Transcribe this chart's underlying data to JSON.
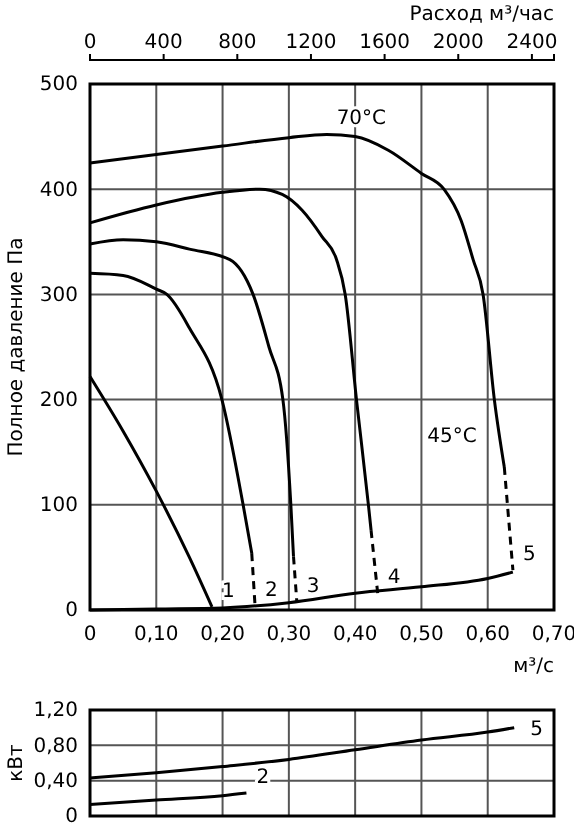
{
  "chart_data": [
    {
      "type": "line",
      "x2label": "Расход м³/час",
      "ylabel": "Полное давление Па",
      "xlabel": "м³/с",
      "xlim": [
        0,
        0.7
      ],
      "xticks": [
        0,
        {
          "value": 0.1,
          "label": "0,10"
        },
        {
          "value": 0.2,
          "label": "0,20"
        },
        {
          "value": 0.3,
          "label": "0,30"
        },
        {
          "value": 0.4,
          "label": "0,40"
        },
        {
          "value": 0.5,
          "label": "0,50"
        },
        {
          "value": 0.6,
          "label": "0,60"
        },
        {
          "value": 0.7,
          "label": "0,70"
        }
      ],
      "x2lim": [
        0,
        2520
      ],
      "x2ticks": [
        0,
        400,
        800,
        1200,
        1600,
        2000,
        2400
      ],
      "ylim": [
        0,
        500
      ],
      "yticks": [
        0,
        100,
        200,
        300,
        400,
        500
      ],
      "grid": true,
      "series": [
        {
          "color": "#000000",
          "x": [
            0,
            0.05,
            0.1,
            0.15,
            0.184
          ],
          "values": [
            222,
            170,
            113,
            50,
            3
          ]
        },
        {
          "color": "#000000",
          "x": [
            0,
            0.05,
            0.1,
            0.116,
            0.15,
            0.199,
            0.231,
            0.244
          ],
          "values": [
            320,
            318,
            305,
            300,
            268,
            200,
            100,
            54
          ]
        },
        {
          "color": "#000000",
          "line_style": "dashed",
          "x": [
            0.244,
            0.249
          ],
          "values": [
            54,
            4
          ]
        },
        {
          "color": "#000000",
          "x": [
            0,
            0.05,
            0.1,
            0.15,
            0.211,
            0.246,
            0.27,
            0.291,
            0.303,
            0.307
          ],
          "values": [
            348,
            352,
            350,
            343,
            333,
            300,
            250,
            200,
            100,
            51
          ]
        },
        {
          "color": "#000000",
          "line_style": "dashed",
          "x": [
            0.307,
            0.312
          ],
          "values": [
            51,
            8
          ]
        },
        {
          "color": "#000000",
          "x": [
            0,
            0.1,
            0.2,
            0.256,
            0.29,
            0.32,
            0.35,
            0.372,
            0.385,
            0.402,
            0.42,
            0.424
          ],
          "values": [
            368,
            385,
            397,
            400,
            395,
            380,
            355,
            333,
            300,
            200,
            100,
            76
          ]
        },
        {
          "color": "#000000",
          "line_style": "dashed",
          "x": [
            0.424,
            0.434
          ],
          "values": [
            76,
            16
          ]
        },
        {
          "color": "#000000",
          "x": [
            0,
            0.1,
            0.2,
            0.3,
            0.357,
            0.4,
            0.45,
            0.5,
            0.534,
            0.56,
            0.578,
            0.593,
            0.61,
            0.625
          ],
          "values": [
            425,
            433,
            441,
            449,
            452,
            450,
            437,
            415,
            400,
            370,
            333,
            300,
            200,
            136
          ]
        },
        {
          "color": "#000000",
          "line_style": "dashed",
          "x": [
            0.625,
            0.638
          ],
          "values": [
            136,
            38
          ]
        },
        {
          "color": "#000000",
          "x": [
            0,
            0.1,
            0.2,
            0.3,
            0.4,
            0.5,
            0.6,
            0.638
          ],
          "values": [
            0,
            1,
            2,
            7,
            16,
            22,
            30,
            36
          ]
        }
      ],
      "annotations": [
        {
          "text": "70°C",
          "x": 0.357,
          "y": 452
        },
        "45°C",
        {
          "text": "1",
          "x": 0.184,
          "y": 3
        },
        {
          "text": "2",
          "x": 0.249,
          "y": 4
        },
        {
          "text": "3",
          "x": 0.312,
          "y": 8
        },
        {
          "text": "4",
          "x": 0.434,
          "y": 16
        },
        {
          "text": "5",
          "x": 0.638,
          "y": 38
        }
      ]
    },
    {
      "type": "line",
      "ylabel": "кВт",
      "xlim": [
        0,
        0.7
      ],
      "xticks": [
        0,
        0.1,
        0.2,
        0.3,
        0.4,
        0.5,
        0.6,
        0.7
      ],
      "ylim": [
        0,
        1.2
      ],
      "yticks": [
        0,
        {
          "value": 0.4,
          "label": "0,40"
        },
        {
          "value": 0.8,
          "label": "0,80"
        },
        {
          "value": 1.2,
          "label": "1,20"
        }
      ],
      "grid": true,
      "tick_labels": "y",
      "series": [
        {
          "color": "#000000",
          "x": [
            0,
            0.1,
            0.2,
            0.3,
            0.4,
            0.5,
            0.6,
            0.64
          ],
          "values": [
            0.43,
            0.49,
            0.56,
            0.64,
            0.75,
            0.86,
            0.95,
            1.0
          ]
        },
        {
          "color": "#000000",
          "x": [
            0,
            0.1,
            0.2,
            0.236
          ],
          "values": [
            0.13,
            0.18,
            0.23,
            0.26
          ]
        }
      ],
      "annotations": [
        {
          "text": "5",
          "x": 0.64,
          "y": 1.0
        },
        {
          "text": "2",
          "x": 0.236,
          "y": 0.26
        }
      ]
    }
  ]
}
